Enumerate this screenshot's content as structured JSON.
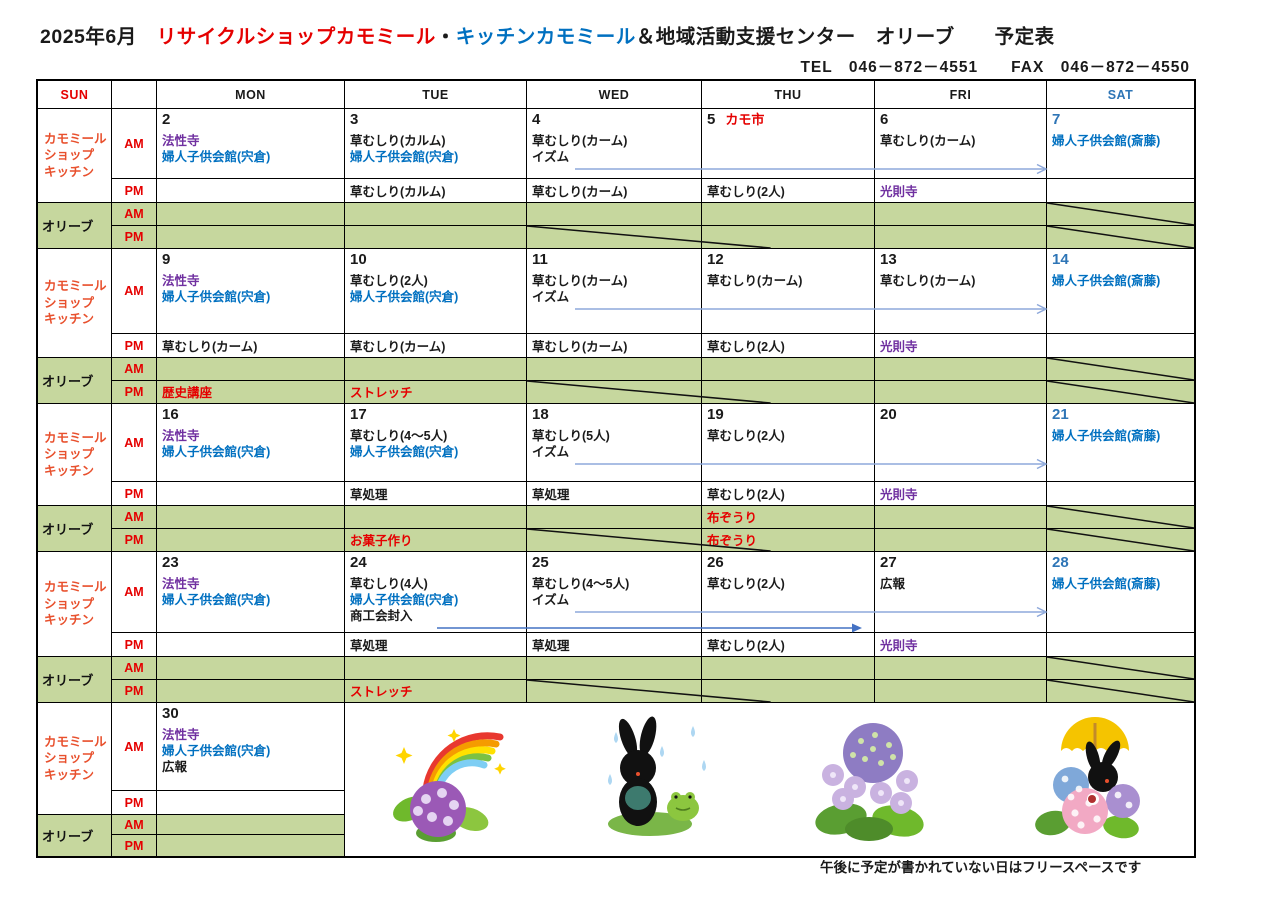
{
  "page_title": {
    "segments": [
      {
        "text": "2025年6月　",
        "color": "black"
      },
      {
        "text": "リサイクルショップカモミール",
        "color": "red"
      },
      {
        "text": "・",
        "color": "black"
      },
      {
        "text": "キッチンカモミール",
        "color": "blue"
      },
      {
        "text": "＆地域活動支援センター　オリーブ　　予定表",
        "color": "black"
      }
    ]
  },
  "contact": "TEL　046－872－4551　　FAX　046－872－4550",
  "footnote": "午後に予定が書かれていない日はフリースペースです",
  "weekday_header": [
    "SUN",
    "MON",
    "TUE",
    "WED",
    "THU",
    "FRI",
    "SAT"
  ],
  "row_labels": {
    "camomile_lines": [
      "カモミール",
      "ショップ",
      "キッチン"
    ],
    "olive": "オリーブ",
    "am": "AM",
    "pm": "PM"
  },
  "colors": {
    "black": "#1a1a1a",
    "red": "#e50000",
    "blue": "#0070c0",
    "purple": "#7030a0",
    "sat_blue": "#2e75b6",
    "camomile_label": "#e8502d",
    "green_bg": "#c6d79e",
    "arrow_light": "#8ea9db",
    "arrow_solid": "#4472c4"
  },
  "weeks": [
    {
      "days_am": [
        {
          "num": "2",
          "lines": [
            {
              "text": "法性寺",
              "color": "purple"
            },
            {
              "text": "婦人子供会館(宍倉)",
              "color": "blue"
            }
          ]
        },
        {
          "num": "3",
          "lines": [
            {
              "text": "草むしり(カルム)",
              "color": "black"
            },
            {
              "text": "婦人子供会館(宍倉)",
              "color": "blue"
            }
          ]
        },
        {
          "num": "4",
          "lines": [
            {
              "text": "草むしり(カーム)",
              "color": "black"
            },
            {
              "text": "イズム",
              "color": "black"
            }
          ],
          "arrow": "open"
        },
        {
          "num": "5",
          "note": {
            "text": "カモ市",
            "color": "red"
          },
          "lines": []
        },
        {
          "num": "6",
          "lines": [
            {
              "text": "草むしり(カーム)",
              "color": "black"
            }
          ]
        },
        {
          "num": "7",
          "num_color": "sat_blue",
          "lines": [
            {
              "text": "婦人子供会館(斎藤)",
              "color": "blue"
            }
          ]
        }
      ],
      "pm": [
        null,
        {
          "text": "草むしり(カルム)",
          "color": "black"
        },
        {
          "text": "草むしり(カーム)",
          "color": "black"
        },
        {
          "text": "草むしり(2人)",
          "color": "black"
        },
        {
          "text": "光則寺",
          "color": "purple"
        },
        null
      ],
      "olive_am": [
        null,
        null,
        null,
        null,
        null,
        null
      ],
      "olive_pm": [
        null,
        null,
        null,
        null,
        null,
        null
      ],
      "olive_am_crossed": [
        5
      ],
      "olive_pm_crossed": [
        2,
        5
      ],
      "illustration_block": false
    },
    {
      "days_am": [
        {
          "num": "9",
          "lines": [
            {
              "text": "法性寺",
              "color": "purple"
            },
            {
              "text": "婦人子供会館(宍倉)",
              "color": "blue"
            }
          ]
        },
        {
          "num": "10",
          "lines": [
            {
              "text": "草むしり(2人)",
              "color": "black"
            },
            {
              "text": "婦人子供会館(宍倉)",
              "color": "blue"
            }
          ]
        },
        {
          "num": "11",
          "lines": [
            {
              "text": "草むしり(カーム)",
              "color": "black"
            },
            {
              "text": "イズム",
              "color": "black"
            }
          ],
          "arrow": "open"
        },
        {
          "num": "12",
          "lines": [
            {
              "text": "草むしり(カーム)",
              "color": "black"
            }
          ]
        },
        {
          "num": "13",
          "lines": [
            {
              "text": "草むしり(カーム)",
              "color": "black"
            }
          ]
        },
        {
          "num": "14",
          "num_color": "sat_blue",
          "lines": [
            {
              "text": "婦人子供会館(斎藤)",
              "color": "blue"
            }
          ]
        }
      ],
      "pm": [
        {
          "text": "草むしり(カーム)",
          "color": "black"
        },
        {
          "text": "草むしり(カーム)",
          "color": "black"
        },
        {
          "text": "草むしり(カーム)",
          "color": "black"
        },
        {
          "text": "草むしり(2人)",
          "color": "black"
        },
        {
          "text": "光則寺",
          "color": "purple"
        },
        null
      ],
      "olive_am": [
        null,
        null,
        null,
        null,
        null,
        null
      ],
      "olive_pm": [
        {
          "text": "歴史講座",
          "color": "red"
        },
        {
          "text": "ストレッチ",
          "color": "red"
        },
        null,
        null,
        null,
        null
      ],
      "olive_am_crossed": [
        5
      ],
      "olive_pm_crossed": [
        2,
        5
      ],
      "illustration_block": false
    },
    {
      "days_am": [
        {
          "num": "16",
          "lines": [
            {
              "text": "法性寺",
              "color": "purple"
            },
            {
              "text": "婦人子供会館(宍倉)",
              "color": "blue"
            }
          ]
        },
        {
          "num": "17",
          "lines": [
            {
              "text": "草むしり(4～5人)",
              "color": "black"
            },
            {
              "text": "婦人子供会館(宍倉)",
              "color": "blue"
            }
          ]
        },
        {
          "num": "18",
          "lines": [
            {
              "text": "草むしり(5人)",
              "color": "black"
            },
            {
              "text": "イズム",
              "color": "black"
            }
          ],
          "arrow": "open"
        },
        {
          "num": "19",
          "lines": [
            {
              "text": "草むしり(2人)",
              "color": "black"
            }
          ]
        },
        {
          "num": "20",
          "lines": []
        },
        {
          "num": "21",
          "num_color": "sat_blue",
          "lines": [
            {
              "text": "婦人子供会館(斎藤)",
              "color": "blue"
            }
          ]
        }
      ],
      "pm": [
        null,
        {
          "text": "草処理",
          "color": "black"
        },
        {
          "text": "草処理",
          "color": "black"
        },
        {
          "text": "草むしり(2人)",
          "color": "black"
        },
        {
          "text": "光則寺",
          "color": "purple"
        },
        null
      ],
      "olive_am": [
        null,
        null,
        null,
        {
          "text": "布ぞうり",
          "color": "red"
        },
        null,
        null
      ],
      "olive_pm": [
        null,
        {
          "text": "お菓子作り",
          "color": "red"
        },
        null,
        {
          "text": "布ぞうり",
          "color": "red"
        },
        null,
        null
      ],
      "olive_am_crossed": [
        5
      ],
      "olive_pm_crossed": [
        2,
        5
      ],
      "illustration_block": false
    },
    {
      "days_am": [
        {
          "num": "23",
          "lines": [
            {
              "text": "法性寺",
              "color": "purple"
            },
            {
              "text": "婦人子供会館(宍倉)",
              "color": "blue"
            }
          ]
        },
        {
          "num": "24",
          "lines": [
            {
              "text": "草むしり(4人)",
              "color": "black"
            },
            {
              "text": "婦人子供会館(宍倉)",
              "color": "blue"
            },
            {
              "text": "商工会封入",
              "color": "black"
            }
          ],
          "arrow": "solid"
        },
        {
          "num": "25",
          "lines": [
            {
              "text": "草むしり(4～5人)",
              "color": "black"
            },
            {
              "text": "イズム",
              "color": "black"
            }
          ],
          "arrow": "open"
        },
        {
          "num": "26",
          "lines": [
            {
              "text": "草むしり(2人)",
              "color": "black"
            }
          ]
        },
        {
          "num": "27",
          "lines": [
            {
              "text": "広報",
              "color": "black"
            }
          ]
        },
        {
          "num": "28",
          "num_color": "sat_blue",
          "lines": [
            {
              "text": "婦人子供会館(斎藤)",
              "color": "blue"
            }
          ]
        }
      ],
      "pm": [
        null,
        {
          "text": "草処理",
          "color": "black"
        },
        {
          "text": "草処理",
          "color": "black"
        },
        {
          "text": "草むしり(2人)",
          "color": "black"
        },
        {
          "text": "光則寺",
          "color": "purple"
        },
        null
      ],
      "olive_am": [
        null,
        null,
        null,
        null,
        null,
        null
      ],
      "olive_pm": [
        null,
        {
          "text": "ストレッチ",
          "color": "red"
        },
        null,
        null,
        null,
        null
      ],
      "olive_am_crossed": [
        5
      ],
      "olive_pm_crossed": [
        2,
        5
      ],
      "illustration_block": false
    },
    {
      "days_am": [
        {
          "num": "30",
          "lines": [
            {
              "text": "法性寺",
              "color": "purple"
            },
            {
              "text": "婦人子供会館(宍倉)",
              "color": "blue"
            },
            {
              "text": "広報",
              "color": "black"
            }
          ]
        },
        null,
        null,
        null,
        null,
        null
      ],
      "pm": [
        null,
        null,
        null,
        null,
        null,
        null
      ],
      "olive_am": [
        null,
        null,
        null,
        null,
        null,
        null
      ],
      "olive_pm": [
        null,
        null,
        null,
        null,
        null,
        null
      ],
      "olive_am_crossed": [],
      "olive_pm_crossed": [],
      "illustration_block": true
    }
  ],
  "illustration_names": [
    "rainbow-hydrangea",
    "rabbit-frog-rain",
    "hydrangea",
    "rabbit-umbrella-hydrangea"
  ]
}
